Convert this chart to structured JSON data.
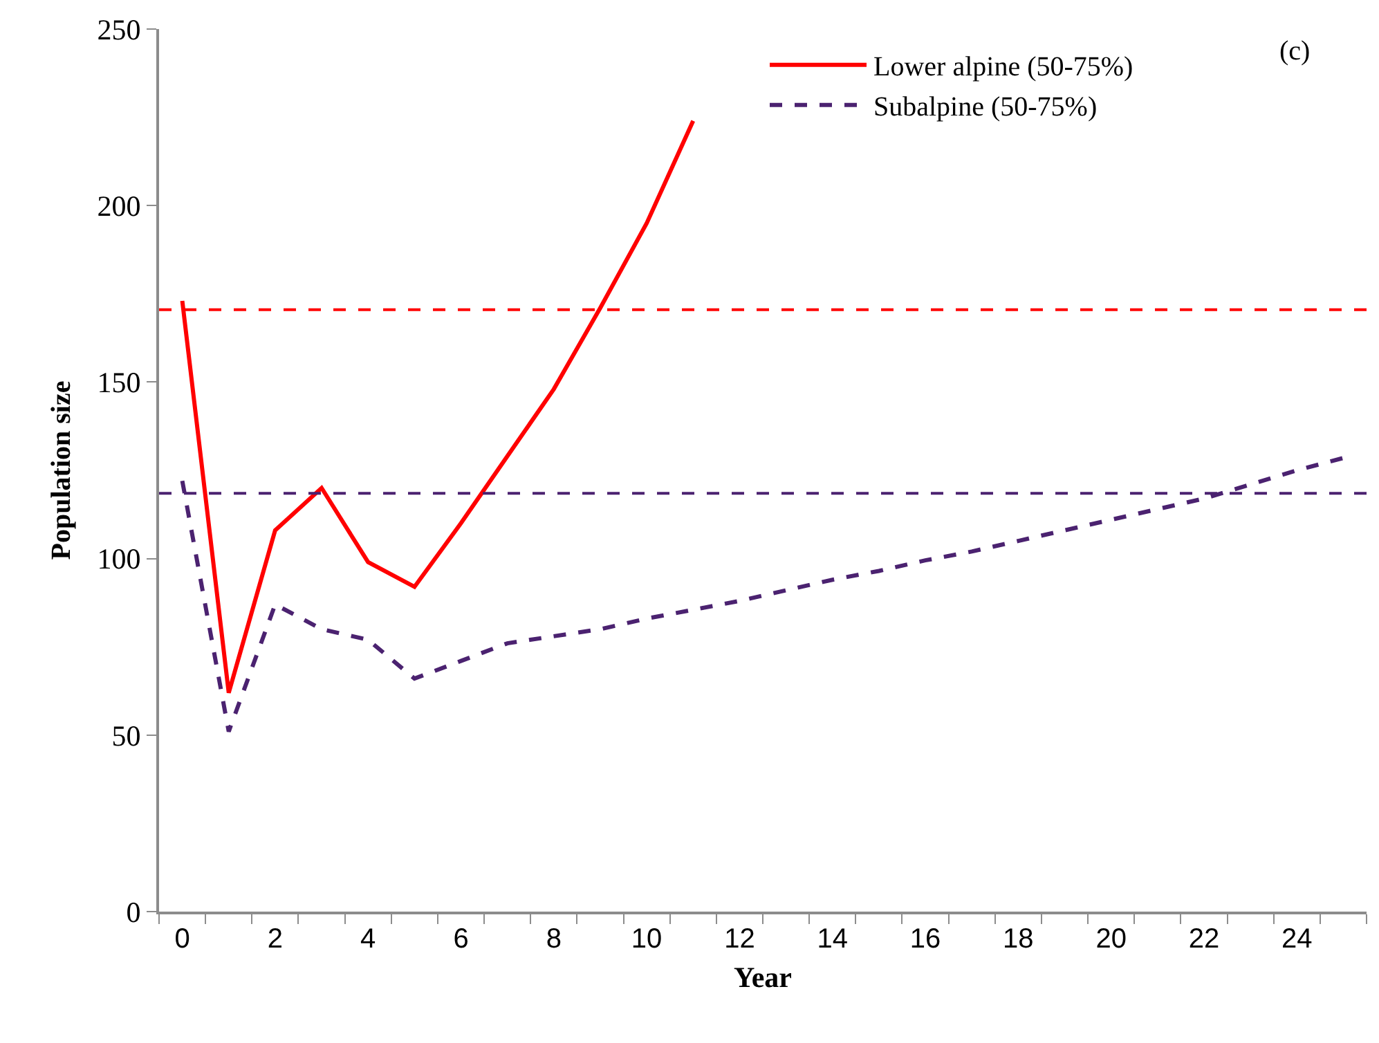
{
  "chart_data": {
    "type": "line",
    "xlabel": "Year",
    "ylabel": "Population size",
    "x": [
      0,
      1,
      2,
      3,
      4,
      5,
      6,
      7,
      8,
      9,
      10,
      11,
      12,
      13,
      14,
      15,
      16,
      17,
      18,
      19,
      20,
      21,
      22,
      23,
      24,
      25
    ],
    "series": [
      {
        "name": "Lower alpine (50-75%)",
        "color": "#ff0000",
        "line_style": "solid",
        "values": [
          173,
          62,
          108,
          120,
          99,
          92,
          110,
          129,
          148,
          171,
          195,
          224,
          null,
          null,
          null,
          null,
          null,
          null,
          null,
          null,
          null,
          null,
          null,
          null,
          null,
          null
        ]
      },
      {
        "name": "Subalpine (50-75%)",
        "color": "#4b2270",
        "line_style": "dashed",
        "values": [
          122,
          51,
          87,
          80,
          77,
          66,
          71,
          76,
          78,
          80,
          83,
          85.5,
          88,
          91,
          94,
          96.5,
          99.5,
          102,
          105,
          108,
          111,
          114,
          117,
          121,
          125,
          128.5
        ]
      }
    ],
    "xlim": [
      -0.5,
      25.5
    ],
    "xticks": [
      0,
      2,
      4,
      6,
      8,
      10,
      12,
      14,
      16,
      18,
      20,
      22,
      24
    ],
    "ylim": [
      0,
      250
    ],
    "yticks": [
      0,
      50,
      100,
      150,
      200,
      250
    ],
    "ref_lines": [
      {
        "axis": "y",
        "value": 170.5,
        "color": "#ff0000",
        "line_style": "dashed"
      },
      {
        "axis": "y",
        "value": 118.5,
        "color": "#4b2270",
        "line_style": "dashed"
      }
    ],
    "annotations": [
      "(c)"
    ],
    "legend": "top right",
    "marker": "none"
  }
}
